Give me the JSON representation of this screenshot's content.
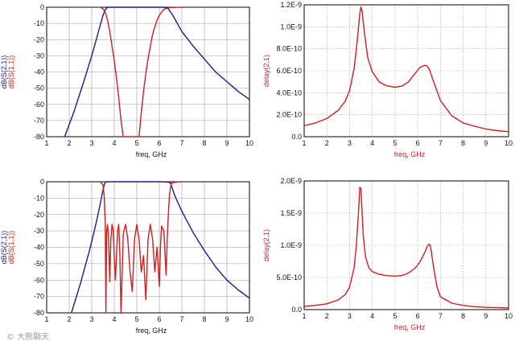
{
  "colors": {
    "blue": "#1a1a8c",
    "red": "#cc1f1f",
    "grid": "#9a9a9a",
    "axis": "#000000"
  },
  "watermark": "© 大熊聊天",
  "chart_data": [
    {
      "type": "line",
      "xlabel": "freq, GHz",
      "ylabel_parts": [
        "dB(S(2,1))",
        "dB(S(1,1))"
      ],
      "xlim": [
        1,
        10
      ],
      "ylim": [
        -80,
        0
      ],
      "xticks": [
        "1",
        "2",
        "3",
        "4",
        "5",
        "6",
        "7",
        "8",
        "9",
        "10"
      ],
      "yticks": [
        "0",
        "-10",
        "-20",
        "-30",
        "-40",
        "-50",
        "-60",
        "-70",
        "-80"
      ],
      "grid": true,
      "series": [
        {
          "name": "dB(S(2,1))",
          "color": "blue",
          "x": [
            1.8,
            2.2,
            2.6,
            3.0,
            3.3,
            3.5,
            3.6,
            3.7,
            4.0,
            5.0,
            6.0,
            6.2,
            6.4,
            6.6,
            7.0,
            7.5,
            8.0,
            8.5,
            9.0,
            9.5,
            10.0
          ],
          "y": [
            -80,
            -65,
            -48,
            -30,
            -15,
            -5,
            -1.5,
            0,
            0,
            0,
            0,
            0,
            -1,
            -5,
            -15,
            -24,
            -32,
            -40,
            -46,
            -52,
            -57
          ]
        },
        {
          "name": "dB(S(1,1))",
          "color": "red",
          "x": [
            3.4,
            3.5,
            3.6,
            3.7,
            3.8,
            3.9,
            4.0,
            4.1,
            4.2,
            4.3,
            4.4,
            5.1,
            5.2,
            5.3,
            5.4,
            5.5,
            5.6,
            5.7,
            5.8,
            5.9,
            6.0,
            6.1,
            6.2,
            6.3,
            6.45,
            6.6,
            6.8,
            7.0
          ],
          "y": [
            -0.2,
            -1,
            -3,
            -8,
            -15,
            -24,
            -33,
            -44,
            -56,
            -70,
            -80,
            -80,
            -65,
            -52,
            -41,
            -32,
            -24,
            -17,
            -12,
            -8,
            -5,
            -3,
            -1.5,
            -0.6,
            -0.3,
            -0.2,
            -0.1,
            0
          ]
        }
      ]
    },
    {
      "type": "line",
      "xlabel": "freq, GHz",
      "ylabel": "delay(2,1)",
      "xlim": [
        1,
        10
      ],
      "ylim": [
        0,
        1.2e-09
      ],
      "xticks": [
        "1",
        "2",
        "3",
        "4",
        "5",
        "6",
        "7",
        "8",
        "9",
        "10"
      ],
      "yticks": [
        "0.0",
        "2.0E-10",
        "4.0E-10",
        "6.0E-10",
        "8.0E-10",
        "1.0E-9",
        "1.2E-9"
      ],
      "grid": true,
      "series": [
        {
          "name": "delay(2,1)",
          "color": "red",
          "x": [
            1.0,
            1.5,
            2.0,
            2.5,
            2.8,
            3.0,
            3.2,
            3.35,
            3.45,
            3.5,
            3.55,
            3.65,
            3.8,
            4.0,
            4.3,
            4.6,
            5.0,
            5.3,
            5.6,
            5.9,
            6.1,
            6.3,
            6.4,
            6.5,
            6.7,
            7.0,
            7.5,
            8.0,
            8.5,
            9.0,
            9.5,
            10.0
          ],
          "y": [
            1e-10,
            1.25e-10,
            1.65e-10,
            2.4e-10,
            3.2e-10,
            4.2e-10,
            6.2e-10,
            9e-10,
            1.12e-09,
            1.18e-09,
            1.14e-09,
            9.5e-10,
            7.2e-10,
            5.9e-10,
            5e-10,
            4.65e-10,
            4.5e-10,
            4.6e-10,
            5e-10,
            5.8e-10,
            6.3e-10,
            6.5e-10,
            6.45e-10,
            6.2e-10,
            5e-10,
            3.3e-10,
            1.9e-10,
            1.25e-10,
            9.5e-11,
            7e-11,
            5.5e-11,
            4.5e-11
          ]
        }
      ]
    },
    {
      "type": "line",
      "xlabel": "freq, GHz",
      "ylabel_parts": [
        "dB(S(2,1))",
        "dB(S(1,1))"
      ],
      "xlim": [
        1,
        10
      ],
      "ylim": [
        -80,
        0
      ],
      "xticks": [
        "1",
        "2",
        "3",
        "4",
        "5",
        "6",
        "7",
        "8",
        "9",
        "10"
      ],
      "yticks": [
        "0",
        "-10",
        "-20",
        "-30",
        "-40",
        "-50",
        "-60",
        "-70",
        "-80"
      ],
      "grid": true,
      "series": [
        {
          "name": "dB(S(2,1))",
          "color": "blue",
          "x": [
            2.1,
            2.5,
            2.9,
            3.2,
            3.4,
            3.5,
            3.55,
            3.6,
            3.65,
            4.0,
            5.0,
            6.0,
            6.4,
            6.5,
            6.55,
            6.6,
            6.7,
            7.0,
            7.5,
            8.0,
            8.5,
            9.0,
            9.5,
            10.0
          ],
          "y": [
            -80,
            -62,
            -42,
            -25,
            -12,
            -5,
            -2,
            -0.5,
            0,
            0,
            0,
            0,
            -0.2,
            -1,
            -3,
            -5,
            -9,
            -18,
            -31,
            -42,
            -52,
            -60,
            -66,
            -71
          ]
        },
        {
          "name": "dB(S(1,1))",
          "color": "red",
          "x": [
            3.4,
            3.5,
            3.55,
            3.6,
            3.63,
            3.66,
            3.7,
            3.75,
            3.8,
            3.85,
            3.9,
            3.95,
            4.0,
            4.05,
            4.1,
            4.15,
            4.2,
            4.25,
            4.3,
            4.4,
            4.5,
            4.6,
            4.7,
            4.8,
            4.9,
            5.0,
            5.1,
            5.2,
            5.3,
            5.4,
            5.5,
            5.6,
            5.7,
            5.8,
            5.9,
            6.0,
            6.05,
            6.1,
            6.2,
            6.3,
            6.35,
            6.4,
            6.45,
            6.5,
            6.55,
            6.6,
            6.8,
            7.0
          ],
          "y": [
            -0.2,
            -2,
            -8,
            -25,
            -80,
            -30,
            -26,
            -35,
            -61,
            -35,
            -26,
            -29,
            -45,
            -60,
            -45,
            -30,
            -26,
            -45,
            -81,
            -32,
            -26,
            -35,
            -55,
            -67,
            -35,
            -26,
            -35,
            -55,
            -45,
            -72,
            -35,
            -26,
            -35,
            -55,
            -40,
            -64,
            -40,
            -27,
            -30,
            -57,
            -35,
            -20,
            -8,
            -3,
            -1,
            -0.5,
            -0.2,
            0
          ]
        }
      ]
    },
    {
      "type": "line",
      "xlabel": "freq, GHz",
      "ylabel": "delay(2,1)",
      "xlim": [
        1,
        10
      ],
      "ylim": [
        0,
        2e-09
      ],
      "xticks": [
        "1",
        "2",
        "3",
        "4",
        "5",
        "6",
        "7",
        "8",
        "9",
        "10"
      ],
      "yticks": [
        "0.0",
        "5.0E-10",
        "1.0E-9",
        "1.5E-9",
        "2.0E-9"
      ],
      "grid": true,
      "series": [
        {
          "name": "delay(2,1)",
          "color": "red",
          "x": [
            1.0,
            1.5,
            2.0,
            2.5,
            2.8,
            3.0,
            3.2,
            3.3,
            3.4,
            3.45,
            3.5,
            3.55,
            3.6,
            3.7,
            3.85,
            4.0,
            4.3,
            4.6,
            5.0,
            5.3,
            5.6,
            5.9,
            6.1,
            6.3,
            6.4,
            6.5,
            6.55,
            6.6,
            6.7,
            6.85,
            7.0,
            7.5,
            8.0,
            8.5,
            9.0,
            9.5,
            10.0
          ],
          "y": [
            5e-11,
            6.5e-11,
            9e-11,
            1.5e-10,
            2.3e-10,
            3.5e-10,
            6.5e-10,
            1e-09,
            1.55e-09,
            1.9e-09,
            1.88e-09,
            1.5e-09,
            1.15e-09,
            8.2e-10,
            6.5e-10,
            5.9e-10,
            5.5e-10,
            5.3e-10,
            5.2e-10,
            5.3e-10,
            5.7e-10,
            6.5e-10,
            7.4e-10,
            8.8e-10,
            9.7e-10,
            1.02e-09,
            1e-09,
            9e-10,
            6.5e-10,
            3.5e-10,
            2e-10,
            1e-10,
            6.5e-11,
            4.5e-11,
            3.5e-11,
            3e-11,
            2.5e-11
          ]
        }
      ]
    }
  ]
}
